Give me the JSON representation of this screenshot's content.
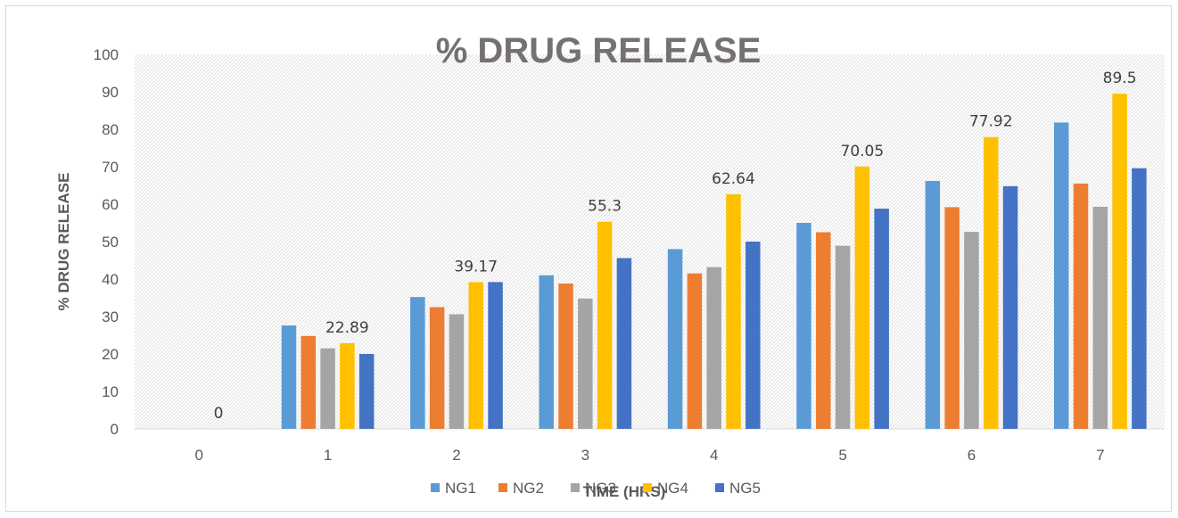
{
  "chart_data": {
    "type": "bar",
    "title": "% DRUG RELEASE",
    "xlabel": "TIME (HRS)",
    "ylabel": "% DRUG RELEASE",
    "categories": [
      "0",
      "1",
      "2",
      "3",
      "4",
      "5",
      "6",
      "7"
    ],
    "ylim": [
      0,
      100
    ],
    "yticks": [
      0,
      10,
      20,
      30,
      40,
      50,
      60,
      70,
      80,
      90,
      100
    ],
    "grid": false,
    "legend_position": "bottom",
    "series": [
      {
        "name": "NG1",
        "color": "#5b9bd5",
        "values": [
          0,
          27.6,
          35.2,
          41.0,
          48.0,
          55.0,
          66.2,
          81.8
        ]
      },
      {
        "name": "NG2",
        "color": "#ed7d31",
        "values": [
          0,
          24.8,
          32.5,
          38.8,
          41.5,
          52.5,
          59.2,
          65.5
        ]
      },
      {
        "name": "NG3",
        "color": "#a5a5a5",
        "values": [
          0,
          21.5,
          30.6,
          34.8,
          43.2,
          48.9,
          52.6,
          59.3
        ]
      },
      {
        "name": "NG4",
        "color": "#ffc000",
        "values": [
          0,
          22.89,
          39.17,
          55.3,
          62.64,
          70.05,
          77.92,
          89.5
        ]
      },
      {
        "name": "NG5",
        "color": "#4472c4",
        "values": [
          0,
          20.0,
          39.2,
          45.6,
          50.0,
          58.8,
          64.8,
          69.6
        ]
      }
    ],
    "data_labels": {
      "series": "NG4",
      "labels": [
        "0",
        "22.89",
        "39.17",
        "55.3",
        "62.64",
        "70.05",
        "77.92",
        "89.5"
      ]
    }
  }
}
